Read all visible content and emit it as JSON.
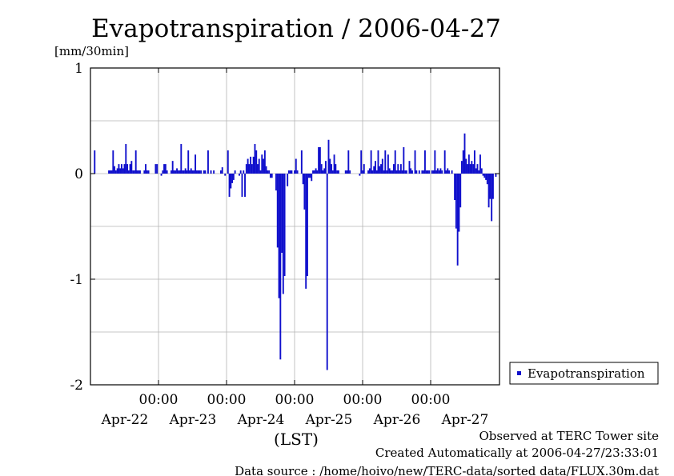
{
  "chart_data": {
    "type": "bar",
    "title": "Evapotranspiration / 2006-04-27",
    "ylabel": "[mm/30min]",
    "xlabel": "(LST)",
    "ylim": [
      -2,
      1
    ],
    "yticks": [
      "1",
      "0",
      "-1",
      "-2"
    ],
    "x_time_ticks": [
      "00:00",
      "00:00",
      "00:00",
      "00:00",
      "00:00"
    ],
    "x_date_labels": [
      "Apr-22",
      "Apr-23",
      "Apr-24",
      "Apr-25",
      "Apr-26",
      "Apr-27"
    ],
    "xlim_days": [
      -1.0,
      5.0
    ],
    "grid": true,
    "legend": "right",
    "series": [
      {
        "name": "Evapotranspiration",
        "color": "#1010cc",
        "points": [
          [
            -0.938,
            0.22
          ],
          [
            -0.729,
            0.03
          ],
          [
            -0.708,
            0.03
          ],
          [
            -0.688,
            0.03
          ],
          [
            -0.667,
            0.22
          ],
          [
            -0.646,
            0.07
          ],
          [
            -0.625,
            0.03
          ],
          [
            -0.604,
            0.05
          ],
          [
            -0.583,
            0.09
          ],
          [
            -0.563,
            0.05
          ],
          [
            -0.542,
            0.09
          ],
          [
            -0.521,
            0.05
          ],
          [
            -0.5,
            0.09
          ],
          [
            -0.479,
            0.28
          ],
          [
            -0.458,
            0.09
          ],
          [
            -0.438,
            0.03
          ],
          [
            -0.417,
            0.09
          ],
          [
            -0.396,
            0.12
          ],
          [
            -0.375,
            0.03
          ],
          [
            -0.354,
            0.03
          ],
          [
            -0.333,
            0.22
          ],
          [
            -0.313,
            0.03
          ],
          [
            -0.292,
            0.03
          ],
          [
            -0.271,
            0.03
          ],
          [
            -0.208,
            0.03
          ],
          [
            -0.188,
            0.09
          ],
          [
            -0.167,
            0.03
          ],
          [
            -0.146,
            0.03
          ],
          [
            -0.042,
            0.09
          ],
          [
            -0.021,
            0.09
          ],
          [
            0.042,
            -0.02
          ],
          [
            0.063,
            0.03
          ],
          [
            0.083,
            0.09
          ],
          [
            0.104,
            0.09
          ],
          [
            0.125,
            0.03
          ],
          [
            0.188,
            0.03
          ],
          [
            0.208,
            0.12
          ],
          [
            0.229,
            0.03
          ],
          [
            0.25,
            0.03
          ],
          [
            0.271,
            0.05
          ],
          [
            0.292,
            0.03
          ],
          [
            0.313,
            0.03
          ],
          [
            0.333,
            0.28
          ],
          [
            0.354,
            0.03
          ],
          [
            0.375,
            0.03
          ],
          [
            0.396,
            0.05
          ],
          [
            0.417,
            0.03
          ],
          [
            0.438,
            0.22
          ],
          [
            0.458,
            0.03
          ],
          [
            0.479,
            0.05
          ],
          [
            0.5,
            0.03
          ],
          [
            0.521,
            0.03
          ],
          [
            0.542,
            0.18
          ],
          [
            0.563,
            0.03
          ],
          [
            0.583,
            0.03
          ],
          [
            0.604,
            0.03
          ],
          [
            0.625,
            0.03
          ],
          [
            0.667,
            0.03
          ],
          [
            0.688,
            0.03
          ],
          [
            0.729,
            0.22
          ],
          [
            0.771,
            0.03
          ],
          [
            0.813,
            0.03
          ],
          [
            0.917,
            0.03
          ],
          [
            0.938,
            0.06
          ],
          [
            0.979,
            -0.02
          ],
          [
            1.021,
            0.22
          ],
          [
            1.042,
            -0.22
          ],
          [
            1.063,
            -0.14
          ],
          [
            1.083,
            -0.09
          ],
          [
            1.104,
            -0.06
          ],
          [
            1.125,
            0.03
          ],
          [
            1.188,
            -0.02
          ],
          [
            1.208,
            0.03
          ],
          [
            1.229,
            -0.22
          ],
          [
            1.25,
            0.03
          ],
          [
            1.271,
            -0.22
          ],
          [
            1.292,
            0.09
          ],
          [
            1.313,
            0.14
          ],
          [
            1.333,
            0.09
          ],
          [
            1.354,
            0.16
          ],
          [
            1.375,
            0.09
          ],
          [
            1.396,
            0.16
          ],
          [
            1.417,
            0.28
          ],
          [
            1.438,
            0.22
          ],
          [
            1.458,
            0.09
          ],
          [
            1.479,
            0.14
          ],
          [
            1.5,
            0.03
          ],
          [
            1.521,
            0.18
          ],
          [
            1.542,
            0.14
          ],
          [
            1.563,
            0.22
          ],
          [
            1.583,
            0.07
          ],
          [
            1.604,
            0.03
          ],
          [
            1.625,
            0.03
          ],
          [
            1.646,
            -0.04
          ],
          [
            1.667,
            -0.04
          ],
          [
            1.729,
            -0.16
          ],
          [
            1.75,
            -0.7
          ],
          [
            1.771,
            -1.18
          ],
          [
            1.792,
            -1.76
          ],
          [
            1.813,
            -0.75
          ],
          [
            1.833,
            -1.14
          ],
          [
            1.854,
            -0.97
          ],
          [
            1.896,
            -0.12
          ],
          [
            1.917,
            0.03
          ],
          [
            1.938,
            0.03
          ],
          [
            1.958,
            0.03
          ],
          [
            2.0,
            0.03
          ],
          [
            2.021,
            0.14
          ],
          [
            2.042,
            0.03
          ],
          [
            2.104,
            0.22
          ],
          [
            2.125,
            -0.1
          ],
          [
            2.146,
            -0.34
          ],
          [
            2.167,
            -1.09
          ],
          [
            2.188,
            -0.97
          ],
          [
            2.208,
            -0.04
          ],
          [
            2.229,
            -0.04
          ],
          [
            2.25,
            -0.07
          ],
          [
            2.271,
            0.03
          ],
          [
            2.292,
            0.03
          ],
          [
            2.313,
            0.05
          ],
          [
            2.333,
            0.03
          ],
          [
            2.354,
            0.25
          ],
          [
            2.375,
            0.25
          ],
          [
            2.396,
            0.09
          ],
          [
            2.417,
            0.03
          ],
          [
            2.438,
            0.05
          ],
          [
            2.458,
            0.12
          ],
          [
            2.479,
            -1.86
          ],
          [
            2.5,
            0.32
          ],
          [
            2.521,
            0.14
          ],
          [
            2.542,
            0.09
          ],
          [
            2.563,
            0.03
          ],
          [
            2.583,
            0.18
          ],
          [
            2.604,
            0.09
          ],
          [
            2.625,
            0.03
          ],
          [
            2.646,
            0.03
          ],
          [
            2.75,
            0.03
          ],
          [
            2.771,
            0.03
          ],
          [
            2.792,
            0.22
          ],
          [
            2.813,
            0.03
          ],
          [
            2.958,
            -0.02
          ],
          [
            2.979,
            0.22
          ],
          [
            3.0,
            0.03
          ],
          [
            3.021,
            0.09
          ],
          [
            3.083,
            0.03
          ],
          [
            3.104,
            0.05
          ],
          [
            3.125,
            0.22
          ],
          [
            3.146,
            0.03
          ],
          [
            3.167,
            0.07
          ],
          [
            3.188,
            0.12
          ],
          [
            3.208,
            0.03
          ],
          [
            3.229,
            0.22
          ],
          [
            3.25,
            0.07
          ],
          [
            3.271,
            0.09
          ],
          [
            3.292,
            0.14
          ],
          [
            3.313,
            0.03
          ],
          [
            3.333,
            0.22
          ],
          [
            3.354,
            0.03
          ],
          [
            3.375,
            0.18
          ],
          [
            3.396,
            0.05
          ],
          [
            3.417,
            0.03
          ],
          [
            3.438,
            0.03
          ],
          [
            3.458,
            0.09
          ],
          [
            3.479,
            0.22
          ],
          [
            3.5,
            0.03
          ],
          [
            3.521,
            0.09
          ],
          [
            3.542,
            0.03
          ],
          [
            3.563,
            0.09
          ],
          [
            3.583,
            0.03
          ],
          [
            3.604,
            0.25
          ],
          [
            3.625,
            0.03
          ],
          [
            3.646,
            0.03
          ],
          [
            3.688,
            0.12
          ],
          [
            3.708,
            0.05
          ],
          [
            3.729,
            0.03
          ],
          [
            3.771,
            0.22
          ],
          [
            3.792,
            0.03
          ],
          [
            3.833,
            0.03
          ],
          [
            3.875,
            0.03
          ],
          [
            3.896,
            0.03
          ],
          [
            3.917,
            0.22
          ],
          [
            3.938,
            0.03
          ],
          [
            3.958,
            0.03
          ],
          [
            3.979,
            0.03
          ],
          [
            4.021,
            0.03
          ],
          [
            4.042,
            0.03
          ],
          [
            4.063,
            0.22
          ],
          [
            4.083,
            0.03
          ],
          [
            4.104,
            0.05
          ],
          [
            4.125,
            0.03
          ],
          [
            4.146,
            0.05
          ],
          [
            4.167,
            0.03
          ],
          [
            4.208,
            0.22
          ],
          [
            4.229,
            0.03
          ],
          [
            4.25,
            0.05
          ],
          [
            4.271,
            0.03
          ],
          [
            4.313,
            0.03
          ],
          [
            4.354,
            -0.25
          ],
          [
            4.375,
            -0.52
          ],
          [
            4.396,
            -0.87
          ],
          [
            4.417,
            -0.55
          ],
          [
            4.438,
            -0.32
          ],
          [
            4.458,
            0.12
          ],
          [
            4.479,
            0.22
          ],
          [
            4.5,
            0.38
          ],
          [
            4.521,
            0.14
          ],
          [
            4.542,
            0.09
          ],
          [
            4.563,
            0.18
          ],
          [
            4.583,
            0.09
          ],
          [
            4.604,
            0.12
          ],
          [
            4.625,
            0.09
          ],
          [
            4.646,
            0.22
          ],
          [
            4.667,
            0.05
          ],
          [
            4.688,
            0.09
          ],
          [
            4.708,
            0.03
          ],
          [
            4.729,
            0.18
          ],
          [
            4.75,
            0.05
          ],
          [
            4.771,
            -0.02
          ],
          [
            4.792,
            -0.04
          ],
          [
            4.813,
            -0.06
          ],
          [
            4.833,
            -0.1
          ],
          [
            4.854,
            -0.32
          ],
          [
            4.875,
            -0.24
          ],
          [
            4.896,
            -0.45
          ],
          [
            4.917,
            -0.24
          ],
          [
            4.958,
            -0.03
          ]
        ]
      }
    ]
  },
  "footer": {
    "line1": "Observed at TERC Tower site",
    "line2": "Created Automatically at 2006-04-27/23:33:01",
    "line3": "Data source : /home/hoivo/new/TERC-data/sorted data/FLUX.30m.dat"
  }
}
